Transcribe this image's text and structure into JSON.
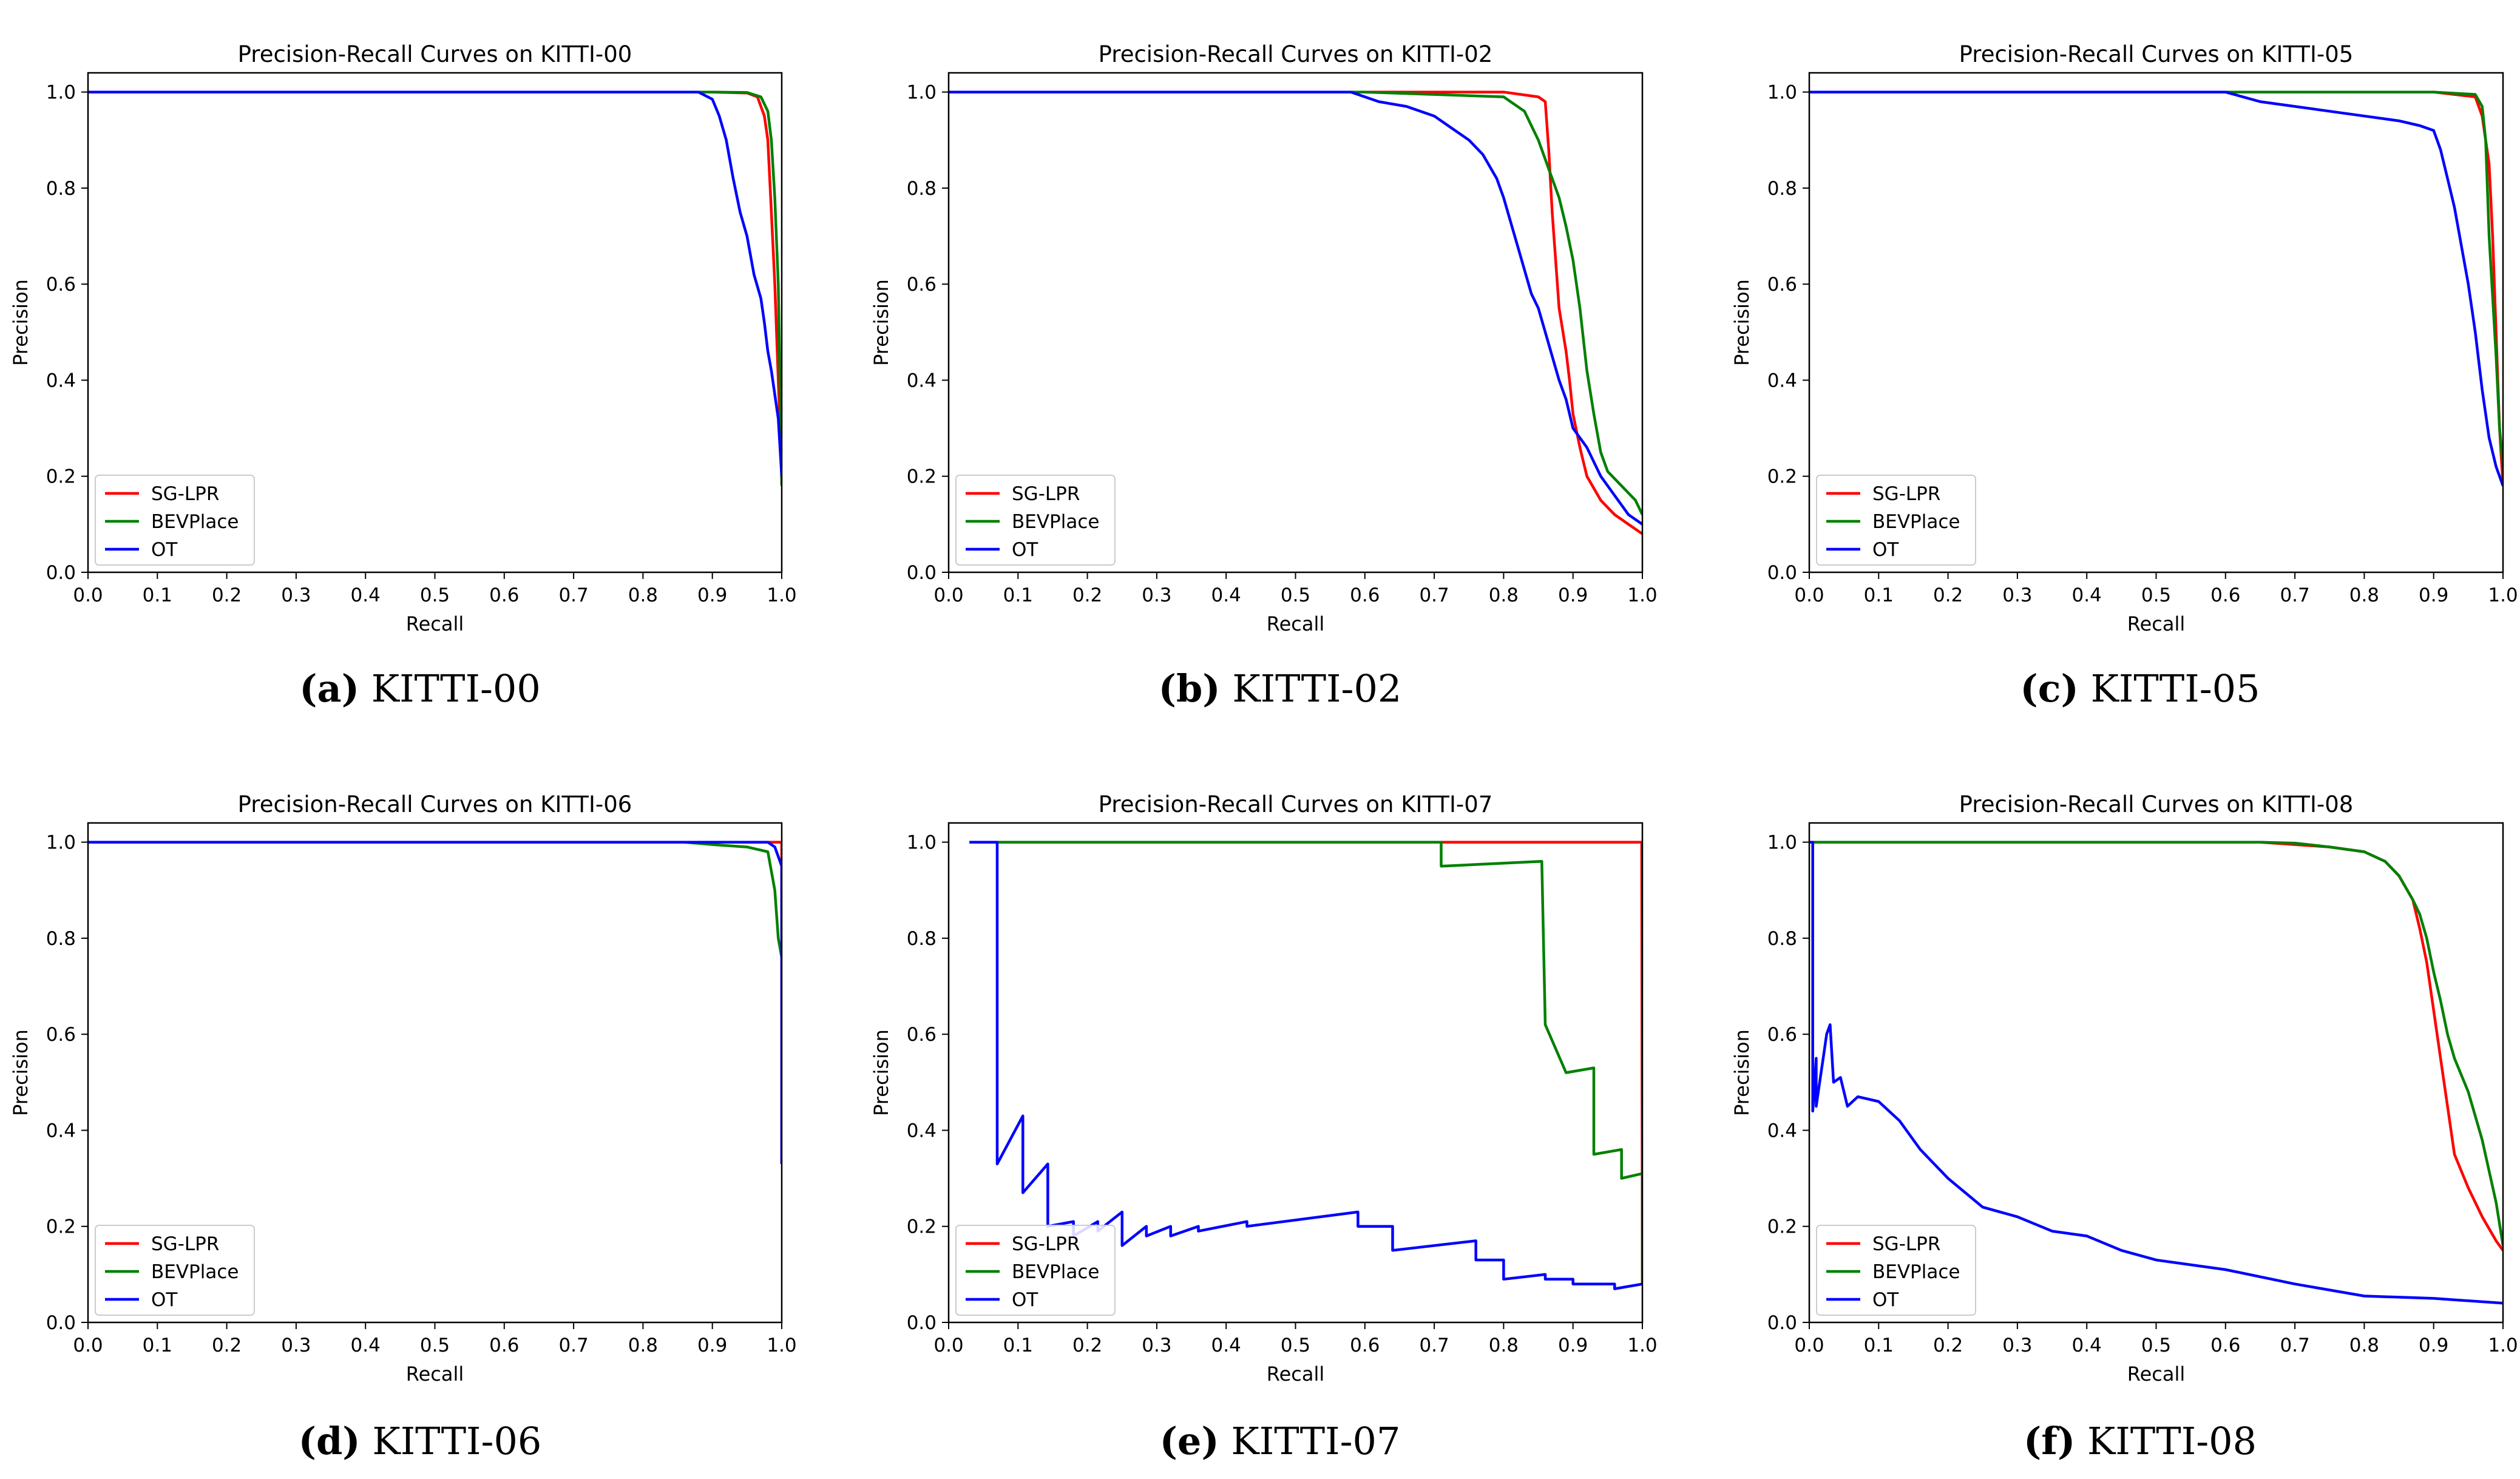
{
  "colors": {
    "SG-LPR": "#ff0000",
    "BEVPlace": "#008000",
    "OT": "#0000ff"
  },
  "chart_data": [
    {
      "type": "line",
      "title": "Precision-Recall Curves on KITTI-00",
      "caption_letter": "(a)",
      "caption_text": "KITTI-00",
      "xlabel": "Recall",
      "ylabel": "Precision",
      "xlim": [
        0,
        1
      ],
      "ylim": [
        0,
        1.04
      ],
      "xticks": [
        "0.0",
        "0.1",
        "0.2",
        "0.3",
        "0.4",
        "0.5",
        "0.6",
        "0.7",
        "0.8",
        "0.9",
        "1.0"
      ],
      "yticks": [
        "0.0",
        "0.2",
        "0.4",
        "0.6",
        "0.8",
        "1.0"
      ],
      "legend": [
        "SG-LPR",
        "BEVPlace",
        "OT"
      ],
      "legend_position": "lower-left",
      "series": [
        {
          "name": "SG-LPR",
          "x": [
            0,
            0.9,
            0.95,
            0.965,
            0.975,
            0.98,
            0.985,
            0.99,
            0.995,
            1.0
          ],
          "y": [
            1,
            1,
            0.998,
            0.99,
            0.95,
            0.9,
            0.75,
            0.6,
            0.4,
            0.22
          ]
        },
        {
          "name": "BEVPlace",
          "x": [
            0,
            0.9,
            0.95,
            0.97,
            0.98,
            0.985,
            0.99,
            0.995,
            1.0
          ],
          "y": [
            1,
            1,
            0.999,
            0.99,
            0.96,
            0.9,
            0.78,
            0.6,
            0.18
          ]
        },
        {
          "name": "OT",
          "x": [
            0,
            0.88,
            0.9,
            0.91,
            0.92,
            0.93,
            0.94,
            0.95,
            0.96,
            0.97,
            0.975,
            0.98,
            0.985,
            0.99,
            0.995,
            1.0
          ],
          "y": [
            1,
            1,
            0.985,
            0.95,
            0.9,
            0.82,
            0.75,
            0.7,
            0.62,
            0.57,
            0.52,
            0.46,
            0.42,
            0.37,
            0.32,
            0.2
          ]
        }
      ]
    },
    {
      "type": "line",
      "title": "Precision-Recall Curves on KITTI-02",
      "caption_letter": "(b)",
      "caption_text": "KITTI-02",
      "xlabel": "Recall",
      "ylabel": "Precision",
      "xlim": [
        0,
        1
      ],
      "ylim": [
        0,
        1.04
      ],
      "xticks": [
        "0.0",
        "0.1",
        "0.2",
        "0.3",
        "0.4",
        "0.5",
        "0.6",
        "0.7",
        "0.8",
        "0.9",
        "1.0"
      ],
      "yticks": [
        "0.0",
        "0.2",
        "0.4",
        "0.6",
        "0.8",
        "1.0"
      ],
      "legend": [
        "SG-LPR",
        "BEVPlace",
        "OT"
      ],
      "legend_position": "lower-left",
      "series": [
        {
          "name": "SG-LPR",
          "x": [
            0,
            0.6,
            0.8,
            0.85,
            0.86,
            0.865,
            0.87,
            0.875,
            0.88,
            0.89,
            0.895,
            0.9,
            0.91,
            0.92,
            0.94,
            0.96,
            0.98,
            1.0
          ],
          "y": [
            1,
            1,
            1,
            0.99,
            0.98,
            0.88,
            0.75,
            0.65,
            0.55,
            0.46,
            0.4,
            0.33,
            0.26,
            0.2,
            0.15,
            0.12,
            0.1,
            0.08
          ]
        },
        {
          "name": "BEVPlace",
          "x": [
            0,
            0.6,
            0.7,
            0.8,
            0.83,
            0.85,
            0.87,
            0.88,
            0.89,
            0.9,
            0.91,
            0.92,
            0.93,
            0.94,
            0.95,
            0.97,
            0.99,
            1.0
          ],
          "y": [
            1,
            1,
            0.995,
            0.99,
            0.96,
            0.9,
            0.82,
            0.78,
            0.72,
            0.65,
            0.55,
            0.42,
            0.33,
            0.25,
            0.21,
            0.18,
            0.15,
            0.12
          ]
        },
        {
          "name": "OT",
          "x": [
            0,
            0.58,
            0.62,
            0.66,
            0.7,
            0.73,
            0.75,
            0.77,
            0.79,
            0.8,
            0.81,
            0.82,
            0.83,
            0.84,
            0.85,
            0.86,
            0.87,
            0.88,
            0.89,
            0.9,
            0.92,
            0.94,
            0.96,
            0.98,
            1.0
          ],
          "y": [
            1,
            1,
            0.98,
            0.97,
            0.95,
            0.92,
            0.9,
            0.87,
            0.82,
            0.78,
            0.73,
            0.68,
            0.63,
            0.58,
            0.55,
            0.5,
            0.45,
            0.4,
            0.36,
            0.3,
            0.26,
            0.2,
            0.16,
            0.12,
            0.1
          ]
        }
      ]
    },
    {
      "type": "line",
      "title": "Precision-Recall Curves on KITTI-05",
      "caption_letter": "(c)",
      "caption_text": "KITTI-05",
      "xlabel": "Recall",
      "ylabel": "Precision",
      "xlim": [
        0,
        1
      ],
      "ylim": [
        0,
        1.04
      ],
      "xticks": [
        "0.0",
        "0.1",
        "0.2",
        "0.3",
        "0.4",
        "0.5",
        "0.6",
        "0.7",
        "0.8",
        "0.9",
        "1.0"
      ],
      "yticks": [
        "0.0",
        "0.2",
        "0.4",
        "0.6",
        "0.8",
        "1.0"
      ],
      "legend": [
        "SG-LPR",
        "BEVPlace",
        "OT"
      ],
      "legend_position": "lower-left",
      "series": [
        {
          "name": "SG-LPR",
          "x": [
            0,
            0.9,
            0.96,
            0.97,
            0.98,
            0.985,
            0.99,
            0.995,
            1.0
          ],
          "y": [
            1,
            1,
            0.99,
            0.95,
            0.85,
            0.7,
            0.5,
            0.3,
            0.18
          ]
        },
        {
          "name": "BEVPlace",
          "x": [
            0,
            0.9,
            0.96,
            0.97,
            0.975,
            0.98,
            0.99,
            0.995,
            1.0
          ],
          "y": [
            1,
            1,
            0.995,
            0.97,
            0.9,
            0.7,
            0.45,
            0.3,
            0.22
          ]
        },
        {
          "name": "OT",
          "x": [
            0,
            0.6,
            0.65,
            0.7,
            0.75,
            0.8,
            0.85,
            0.88,
            0.9,
            0.91,
            0.92,
            0.93,
            0.94,
            0.95,
            0.96,
            0.97,
            0.98,
            0.99,
            1.0
          ],
          "y": [
            1,
            1,
            0.98,
            0.97,
            0.96,
            0.95,
            0.94,
            0.93,
            0.92,
            0.88,
            0.82,
            0.76,
            0.68,
            0.6,
            0.5,
            0.38,
            0.28,
            0.22,
            0.18
          ]
        }
      ]
    },
    {
      "type": "line",
      "title": "Precision-Recall Curves on KITTI-06",
      "caption_letter": "(d)",
      "caption_text": "KITTI-06",
      "xlabel": "Recall",
      "ylabel": "Precision",
      "xlim": [
        0,
        1
      ],
      "ylim": [
        0,
        1.04
      ],
      "xticks": [
        "0.0",
        "0.1",
        "0.2",
        "0.3",
        "0.4",
        "0.5",
        "0.6",
        "0.7",
        "0.8",
        "0.9",
        "1.0"
      ],
      "yticks": [
        "0.0",
        "0.2",
        "0.4",
        "0.6",
        "0.8",
        "1.0"
      ],
      "legend": [
        "SG-LPR",
        "BEVPlace",
        "OT"
      ],
      "legend_position": "lower-left",
      "series": [
        {
          "name": "SG-LPR",
          "x": [
            0,
            0.995,
            1.0,
            1.0
          ],
          "y": [
            1,
            1,
            1,
            0.33
          ]
        },
        {
          "name": "BEVPlace",
          "x": [
            0,
            0.86,
            0.9,
            0.95,
            0.98,
            0.99,
            0.995,
            1.0
          ],
          "y": [
            1,
            1,
            0.995,
            0.99,
            0.98,
            0.9,
            0.8,
            0.76
          ]
        },
        {
          "name": "OT",
          "x": [
            0,
            0.98,
            0.99,
            0.995,
            1.0,
            1.0
          ],
          "y": [
            1,
            1,
            0.99,
            0.97,
            0.95,
            0.33
          ]
        }
      ]
    },
    {
      "type": "line",
      "title": "Precision-Recall Curves on KITTI-07",
      "caption_letter": "(e)",
      "caption_text": "KITTI-07",
      "xlabel": "Recall",
      "ylabel": "Precision",
      "xlim": [
        0,
        1
      ],
      "ylim": [
        0,
        1.04
      ],
      "xticks": [
        "0.0",
        "0.1",
        "0.2",
        "0.3",
        "0.4",
        "0.5",
        "0.6",
        "0.7",
        "0.8",
        "0.9",
        "1.0"
      ],
      "yticks": [
        "0.0",
        "0.2",
        "0.4",
        "0.6",
        "0.8",
        "1.0"
      ],
      "legend": [
        "SG-LPR",
        "BEVPlace",
        "OT"
      ],
      "legend_position": "lower-left",
      "series": [
        {
          "name": "SG-LPR",
          "x": [
            0.03,
            0.999,
            1.0
          ],
          "y": [
            1,
            1,
            0.08
          ]
        },
        {
          "name": "BEVPlace",
          "x": [
            0.03,
            0.71,
            0.71,
            0.855,
            0.855,
            0.86,
            0.86,
            0.89,
            0.89,
            0.93,
            0.93,
            0.97,
            0.97,
            1.0,
            1.0
          ],
          "y": [
            1,
            1,
            0.95,
            0.96,
            0.96,
            0.62,
            0.62,
            0.52,
            0.52,
            0.53,
            0.35,
            0.36,
            0.3,
            0.31,
            0.08
          ]
        },
        {
          "name": "OT",
          "x": [
            0.03,
            0.07,
            0.07,
            0.107,
            0.107,
            0.143,
            0.143,
            0.18,
            0.18,
            0.215,
            0.215,
            0.25,
            0.25,
            0.285,
            0.285,
            0.32,
            0.32,
            0.36,
            0.36,
            0.43,
            0.43,
            0.59,
            0.59,
            0.64,
            0.64,
            0.76,
            0.76,
            0.8,
            0.8,
            0.86,
            0.86,
            0.9,
            0.9,
            0.96,
            0.96,
            1.0
          ],
          "y": [
            1,
            1,
            0.33,
            0.43,
            0.27,
            0.33,
            0.2,
            0.21,
            0.18,
            0.21,
            0.19,
            0.23,
            0.16,
            0.2,
            0.18,
            0.2,
            0.18,
            0.2,
            0.19,
            0.21,
            0.2,
            0.23,
            0.2,
            0.2,
            0.15,
            0.17,
            0.13,
            0.13,
            0.09,
            0.1,
            0.09,
            0.09,
            0.08,
            0.08,
            0.07,
            0.08
          ]
        }
      ]
    },
    {
      "type": "line",
      "title": "Precision-Recall Curves on KITTI-08",
      "caption_letter": "(f)",
      "caption_text": "KITTI-08",
      "xlabel": "Recall",
      "ylabel": "Precision",
      "xlim": [
        0,
        1
      ],
      "ylim": [
        0,
        1.04
      ],
      "xticks": [
        "0.0",
        "0.1",
        "0.2",
        "0.3",
        "0.4",
        "0.5",
        "0.6",
        "0.7",
        "0.8",
        "0.9",
        "1.0"
      ],
      "yticks": [
        "0.0",
        "0.2",
        "0.4",
        "0.6",
        "0.8",
        "1.0"
      ],
      "legend": [
        "SG-LPR",
        "BEVPlace",
        "OT"
      ],
      "legend_position": "lower-left",
      "series": [
        {
          "name": "SG-LPR",
          "x": [
            0,
            0.65,
            0.7,
            0.75,
            0.8,
            0.83,
            0.85,
            0.87,
            0.88,
            0.89,
            0.9,
            0.91,
            0.92,
            0.93,
            0.95,
            0.97,
            0.99,
            1.0
          ],
          "y": [
            1,
            1,
            0.995,
            0.99,
            0.98,
            0.96,
            0.93,
            0.88,
            0.82,
            0.75,
            0.65,
            0.55,
            0.45,
            0.35,
            0.28,
            0.22,
            0.17,
            0.15
          ]
        },
        {
          "name": "BEVPlace",
          "x": [
            0,
            0.65,
            0.7,
            0.75,
            0.8,
            0.83,
            0.85,
            0.87,
            0.88,
            0.89,
            0.9,
            0.91,
            0.92,
            0.93,
            0.95,
            0.97,
            0.99,
            1.0
          ],
          "y": [
            1,
            1,
            0.998,
            0.99,
            0.98,
            0.96,
            0.93,
            0.88,
            0.85,
            0.8,
            0.73,
            0.67,
            0.6,
            0.55,
            0.48,
            0.38,
            0.25,
            0.16
          ]
        },
        {
          "name": "OT",
          "x": [
            0,
            0.005,
            0.005,
            0.01,
            0.01,
            0.015,
            0.02,
            0.025,
            0.03,
            0.035,
            0.045,
            0.055,
            0.07,
            0.1,
            0.13,
            0.16,
            0.2,
            0.25,
            0.3,
            0.35,
            0.4,
            0.45,
            0.5,
            0.6,
            0.7,
            0.8,
            0.9,
            1.0
          ],
          "y": [
            1,
            1,
            0.44,
            0.55,
            0.45,
            0.5,
            0.55,
            0.6,
            0.62,
            0.5,
            0.51,
            0.45,
            0.47,
            0.46,
            0.42,
            0.36,
            0.3,
            0.24,
            0.22,
            0.19,
            0.18,
            0.15,
            0.13,
            0.11,
            0.08,
            0.055,
            0.05,
            0.04
          ]
        }
      ]
    }
  ]
}
